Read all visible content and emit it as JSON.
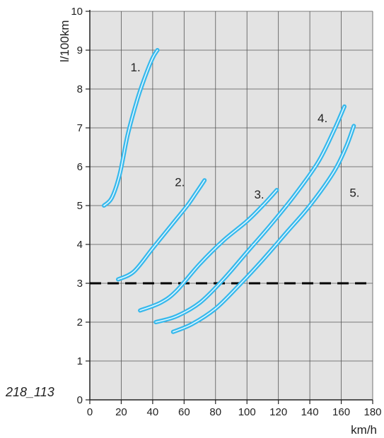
{
  "figure_id": "218_113",
  "chart_data": {
    "type": "line",
    "xlabel": "km/h",
    "ylabel": "l/100km",
    "xlim": [
      0,
      180
    ],
    "ylim": [
      0,
      10
    ],
    "x_ticks": [
      0,
      20,
      40,
      60,
      80,
      100,
      120,
      140,
      160,
      180
    ],
    "y_ticks": [
      0,
      1,
      2,
      3,
      4,
      5,
      6,
      7,
      8,
      9,
      10
    ],
    "grid": true,
    "background_color": "#e3e3e3",
    "line_color": "#35b8ec",
    "reference_line": {
      "y": 3,
      "style": "dashed",
      "color": "#000000"
    },
    "series": [
      {
        "label": "1.",
        "x": [
          9,
          14,
          19,
          24,
          30,
          35,
          40,
          43
        ],
        "y": [
          5.0,
          5.2,
          5.8,
          6.8,
          7.7,
          8.3,
          8.8,
          9.0
        ]
      },
      {
        "label": "2.",
        "x": [
          18,
          28,
          40,
          52,
          62,
          68,
          73
        ],
        "y": [
          3.1,
          3.3,
          3.9,
          4.5,
          5.0,
          5.35,
          5.65
        ]
      },
      {
        "label": "3.",
        "x": [
          32,
          45,
          55,
          70,
          85,
          100,
          110,
          119
        ],
        "y": [
          2.3,
          2.5,
          2.8,
          3.5,
          4.1,
          4.6,
          5.0,
          5.4
        ]
      },
      {
        "label": "4.",
        "x": [
          42,
          55,
          70,
          85,
          100,
          115,
          130,
          145,
          155,
          162
        ],
        "y": [
          2.0,
          2.15,
          2.5,
          3.1,
          3.8,
          4.5,
          5.25,
          6.1,
          6.9,
          7.55
        ]
      },
      {
        "label": "5.",
        "x": [
          53,
          65,
          80,
          95,
          110,
          125,
          140,
          155,
          163,
          168
        ],
        "y": [
          1.75,
          1.95,
          2.35,
          2.95,
          3.6,
          4.3,
          5.0,
          5.85,
          6.5,
          7.05
        ]
      }
    ]
  }
}
